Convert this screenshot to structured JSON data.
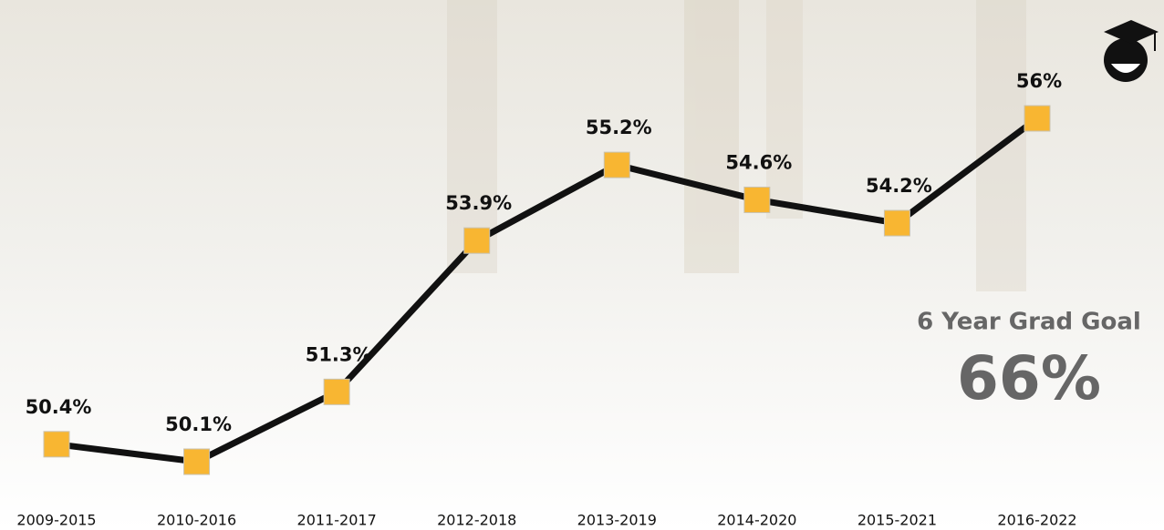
{
  "chart_data": {
    "type": "line",
    "categories": [
      "2009-2015",
      "2010-2016",
      "2011-2017",
      "2012-2018",
      "2013-2019",
      "2014-2020",
      "2015-2021",
      "2016-2022"
    ],
    "values": [
      50.4,
      50.1,
      51.3,
      53.9,
      55.2,
      54.6,
      54.2,
      56
    ],
    "value_labels": [
      "50.4%",
      "50.1%",
      "51.3%",
      "53.9%",
      "55.2%",
      "54.6%",
      "54.2%",
      "56%"
    ],
    "color": "#111111",
    "marker_color": "#f8b632",
    "annotations": [
      "6 Year Grad Goal",
      "66%"
    ]
  }
}
